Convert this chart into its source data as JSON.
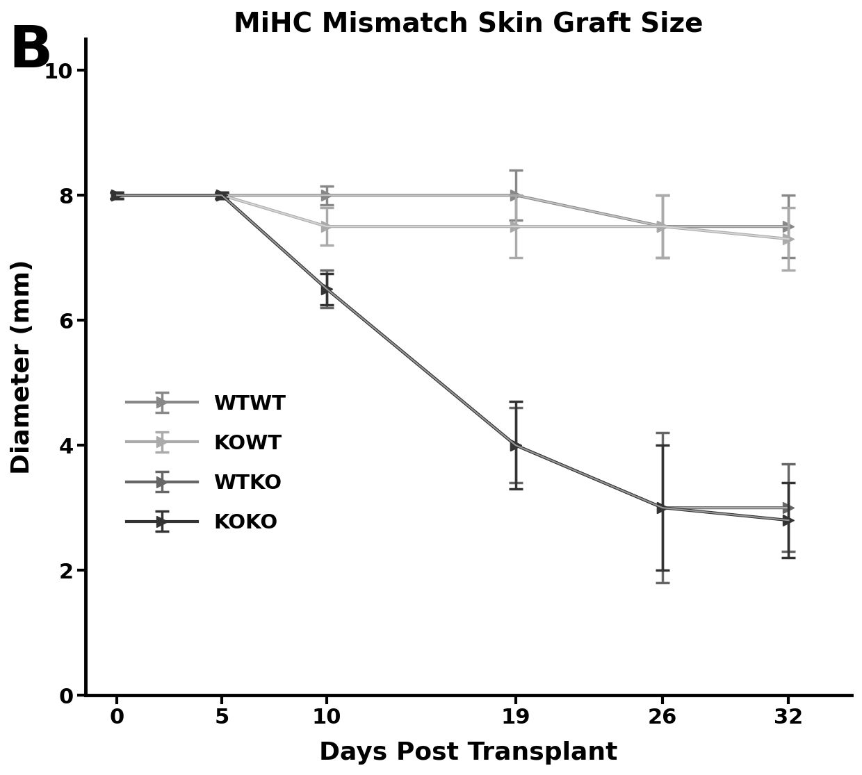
{
  "title": "MiHC Mismatch Skin Graft Size",
  "panel_label": "B",
  "xlabel": "Days Post Transplant",
  "ylabel": "Diameter (mm)",
  "xlim": [
    -1.5,
    35
  ],
  "ylim": [
    0,
    10.5
  ],
  "xticks": [
    0,
    5,
    10,
    19,
    26,
    32
  ],
  "yticks": [
    0,
    2,
    4,
    6,
    8,
    10
  ],
  "series": [
    {
      "label": "WTWT",
      "x": [
        0,
        5,
        10,
        19,
        26,
        32
      ],
      "y": [
        8.0,
        8.0,
        8.0,
        8.0,
        7.5,
        7.5
      ],
      "yerr": [
        0.05,
        0.05,
        0.15,
        0.4,
        0.5,
        0.5
      ],
      "color": "#888888",
      "lw": 3.0,
      "marker": ">",
      "ms": 12
    },
    {
      "label": "KOWT",
      "x": [
        0,
        5,
        10,
        19,
        26,
        32
      ],
      "y": [
        8.0,
        8.0,
        7.5,
        7.5,
        7.5,
        7.3
      ],
      "yerr": [
        0.05,
        0.05,
        0.3,
        0.5,
        0.5,
        0.5
      ],
      "color": "#aaaaaa",
      "lw": 3.0,
      "marker": ">",
      "ms": 12
    },
    {
      "label": "WTKO",
      "x": [
        0,
        5,
        10,
        19,
        26,
        32
      ],
      "y": [
        8.0,
        8.0,
        6.5,
        4.0,
        3.0,
        3.0
      ],
      "yerr": [
        0.05,
        0.05,
        0.3,
        0.6,
        1.2,
        0.7
      ],
      "color": "#666666",
      "lw": 3.0,
      "marker": ">",
      "ms": 12
    },
    {
      "label": "KOKO",
      "x": [
        0,
        5,
        10,
        19,
        26,
        32
      ],
      "y": [
        8.0,
        8.0,
        6.5,
        4.0,
        3.0,
        2.8
      ],
      "yerr": [
        0.05,
        0.05,
        0.25,
        0.7,
        1.0,
        0.6
      ],
      "color": "#333333",
      "lw": 3.0,
      "marker": ">",
      "ms": 12
    }
  ],
  "background_color": "#ffffff",
  "title_fontsize": 28,
  "label_fontsize": 26,
  "tick_fontsize": 22,
  "legend_fontsize": 21,
  "panel_label_fontsize": 60
}
